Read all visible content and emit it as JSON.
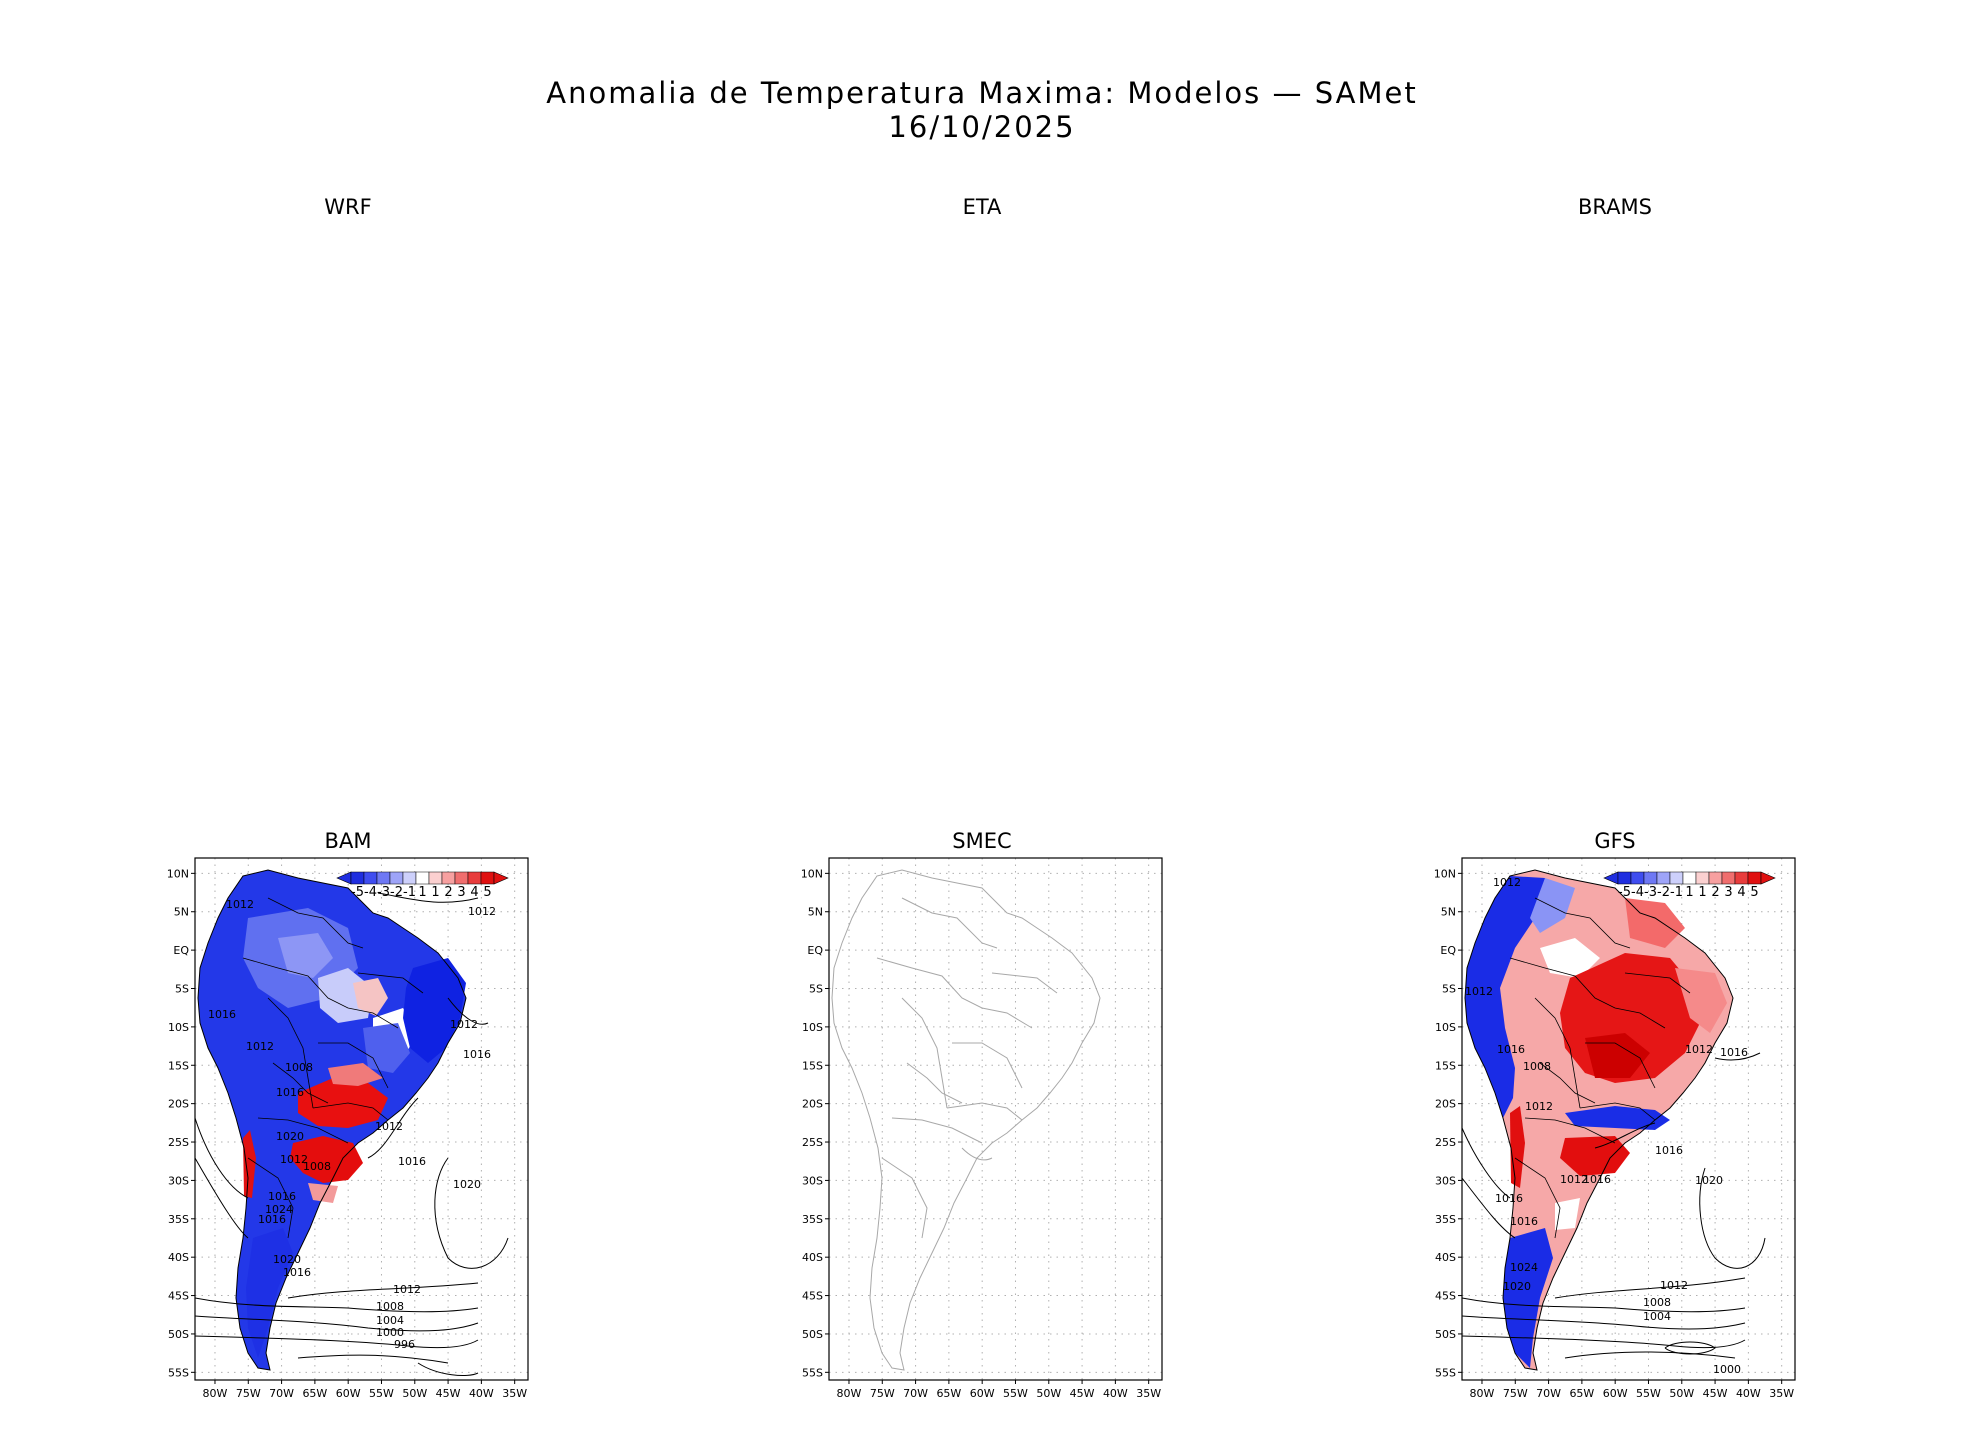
{
  "figure": {
    "title_line1": "Anomalia de Temperatura Maxima: Modelos — SAMet",
    "title_line2": "16/10/2025"
  },
  "top_row_labels": {
    "wrf": "WRF",
    "eta": "ETA",
    "brams": "BRAMS"
  },
  "panels": {
    "bam": {
      "label": "BAM",
      "isobars": [
        "1012",
        "1012",
        "1016",
        "1012",
        "1016",
        "1012",
        "1008",
        "1016",
        "1020",
        "1012",
        "1008",
        "1016",
        "1012",
        "1016",
        "1024",
        "1016",
        "1020",
        "1016",
        "1020",
        "1012",
        "1008",
        "1004",
        "1000",
        "996"
      ]
    },
    "smec": {
      "label": "SMEC"
    },
    "gfs": {
      "label": "GFS",
      "isobars": [
        "1012",
        "1012",
        "1016",
        "1016",
        "1012",
        "1008",
        "1012",
        "1016",
        "1016",
        "1012",
        "1016",
        "1016",
        "1020",
        "1024",
        "1020",
        "1012",
        "1008",
        "1004",
        "1000"
      ]
    }
  },
  "axes": {
    "lat_ticks": [
      "10N",
      "5N",
      "EQ",
      "5S",
      "10S",
      "15S",
      "20S",
      "25S",
      "30S",
      "35S",
      "40S",
      "45S",
      "50S",
      "55S"
    ],
    "lon_ticks": [
      "80W",
      "75W",
      "70W",
      "65W",
      "60W",
      "55W",
      "50W",
      "45W",
      "40W",
      "35W"
    ]
  },
  "colorbar": {
    "labels": [
      "-5",
      "-4",
      "-3",
      "-2",
      "-1",
      "1",
      "1",
      "2",
      "3",
      "4",
      "5"
    ],
    "colors": [
      "#1f2ee0",
      "#3f4df0",
      "#6e78f4",
      "#9ea4f8",
      "#cdd0fb",
      "#ffffff",
      "#fbd0d0",
      "#f7a0a0",
      "#f06e6e",
      "#e83c3c",
      "#e01010"
    ]
  },
  "colors": {
    "strong_blue": "#1426e6",
    "mid_blue": "#5a68f0",
    "light_blue": "#b8bdf8",
    "strong_red": "#e40d0d",
    "mid_red": "#f06060",
    "light_red": "#f8b8b8",
    "border_grey": "#a8a8a8"
  }
}
